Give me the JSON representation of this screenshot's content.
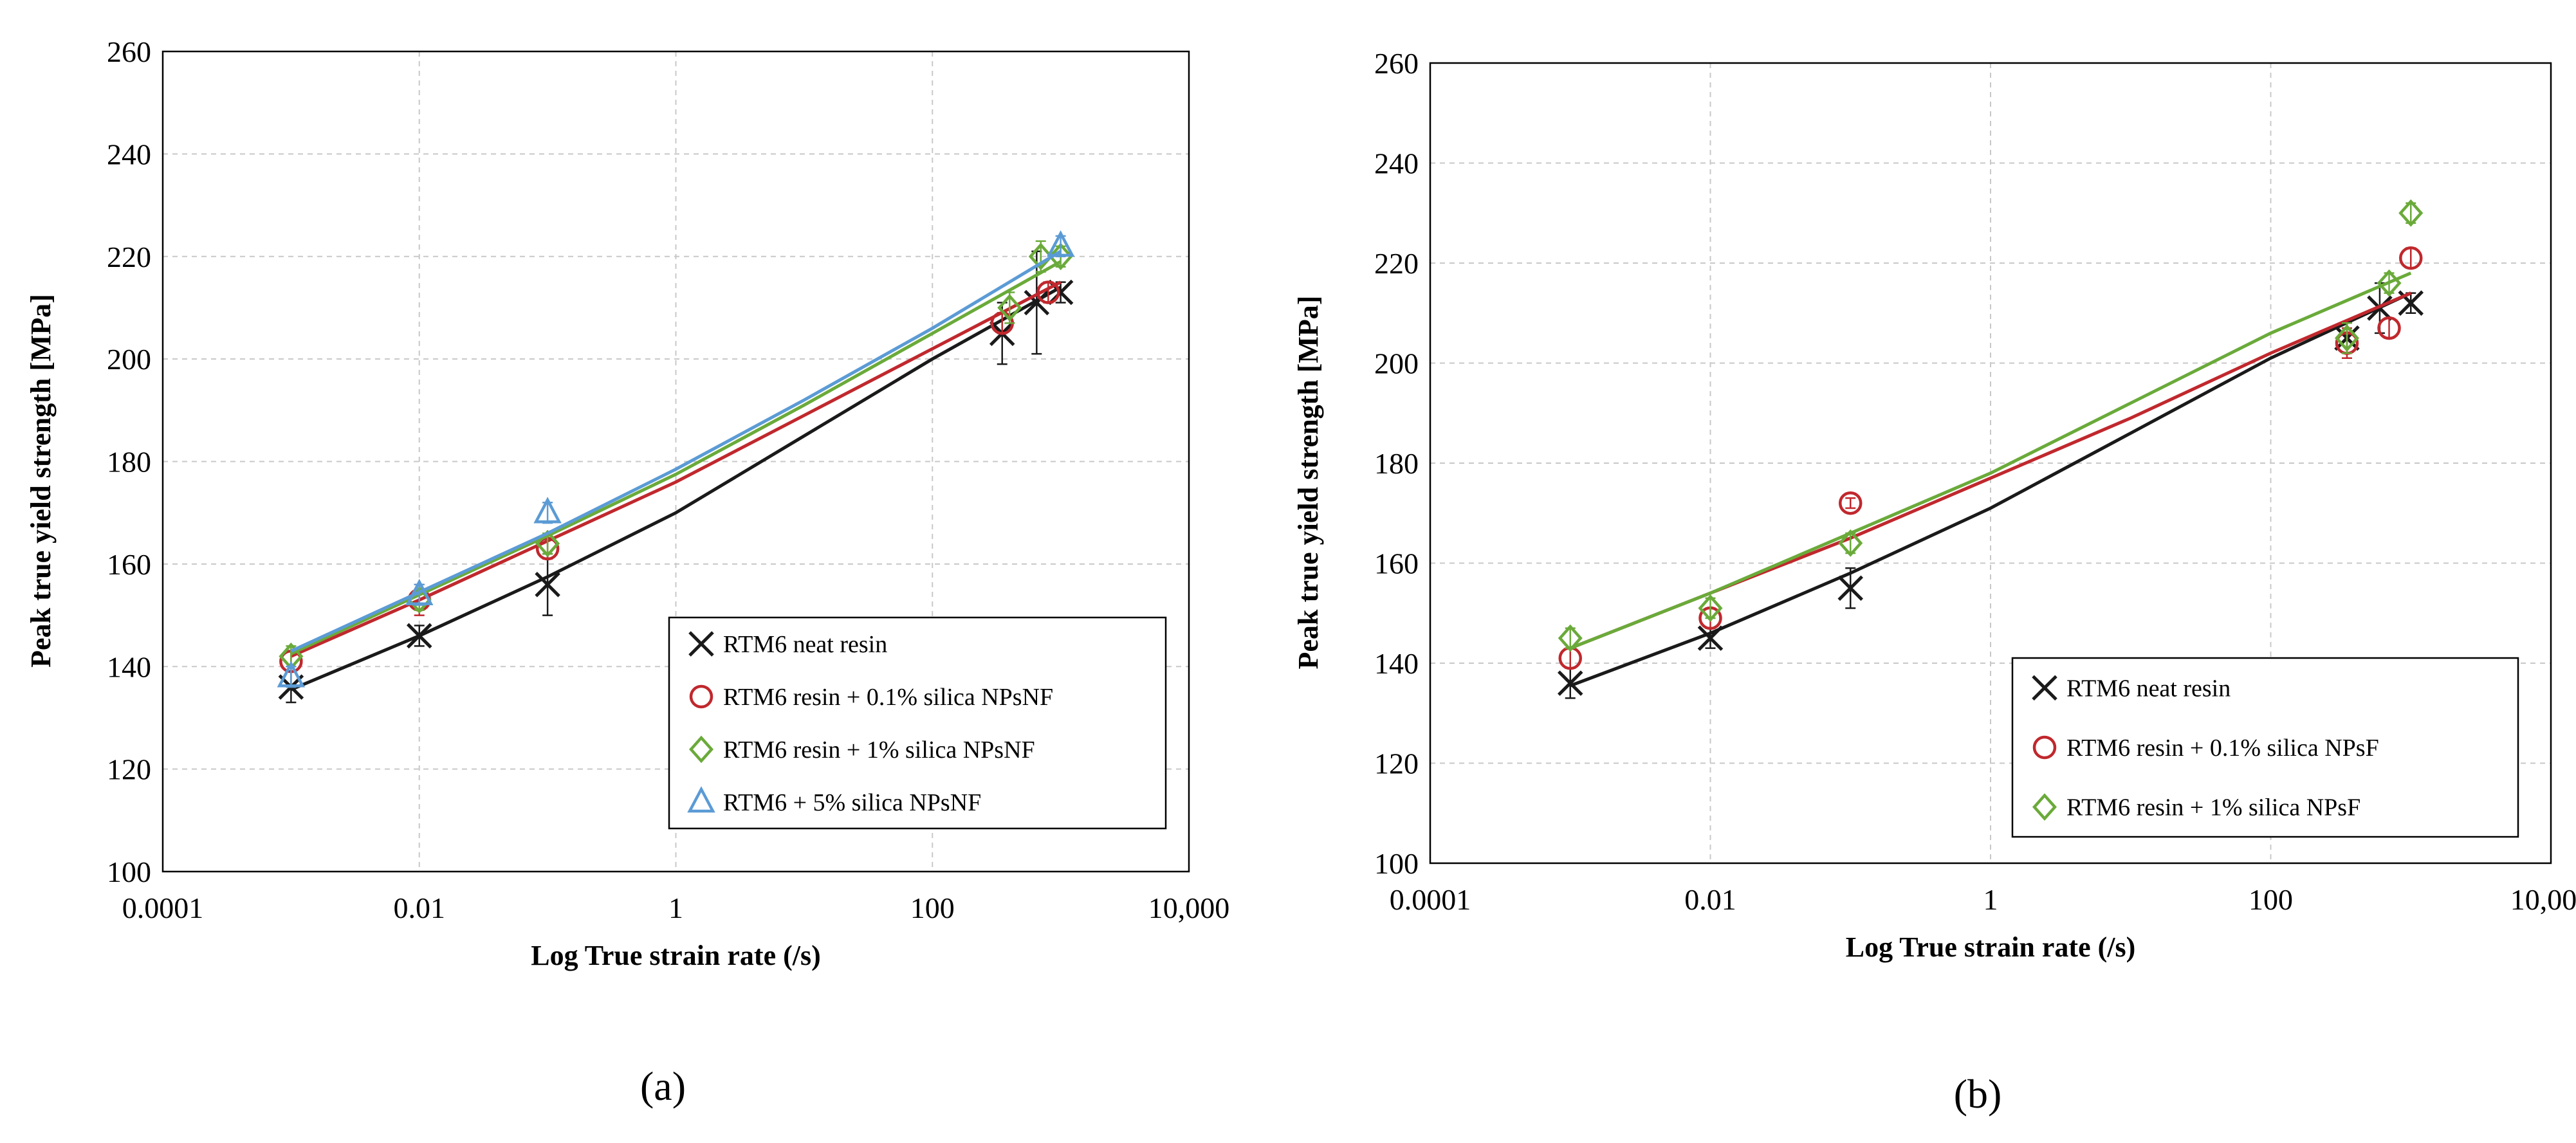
{
  "chart_data": [
    {
      "type": "scatter",
      "panel_label": "(a)",
      "title": "",
      "xlabel": "Log True strain rate (/s)",
      "ylabel": "Peak true yield strength [MPa]",
      "xscale": "log",
      "xlim": [
        0.0001,
        10000
      ],
      "ylim": [
        100,
        260
      ],
      "xticks": [
        0.0001,
        0.01,
        1,
        100,
        10000
      ],
      "xtick_labels": [
        "0.0001",
        "0.01",
        "1",
        "100",
        "10,000"
      ],
      "yticks": [
        100,
        120,
        140,
        160,
        180,
        200,
        220,
        240,
        260
      ],
      "ytick_labels": [
        "100",
        "120",
        "140",
        "160",
        "180",
        "200",
        "220",
        "240",
        "260"
      ],
      "grid": true,
      "legend_position": "bottom-right",
      "series": [
        {
          "name": "RTM6 neat resin",
          "marker": "x",
          "color": "#1a1a1a",
          "points": [
            {
              "x": 0.001,
              "y": 136,
              "err": 3
            },
            {
              "x": 0.01,
              "y": 146,
              "err": 2
            },
            {
              "x": 0.1,
              "y": 156,
              "err": 6
            },
            {
              "x": 350,
              "y": 205,
              "err": 6
            },
            {
              "x": 650,
              "y": 211,
              "err": 10
            },
            {
              "x": 1000,
              "y": 213,
              "err": 2
            }
          ],
          "fit": [
            [
              0.001,
              135.5
            ],
            [
              0.01,
              146
            ],
            [
              0.1,
              157.5
            ],
            [
              1,
              170
            ],
            [
              10,
              185
            ],
            [
              100,
              200
            ],
            [
              1000,
              214
            ]
          ]
        },
        {
          "name": "RTM6 resin + 0.1% silica NPsNF",
          "marker": "circle",
          "color": "#c0282d",
          "points": [
            {
              "x": 0.001,
              "y": 141,
              "err": 2
            },
            {
              "x": 0.01,
              "y": 153,
              "err": 3
            },
            {
              "x": 0.1,
              "y": 163,
              "err": 2
            },
            {
              "x": 350,
              "y": 207,
              "err": 2
            },
            {
              "x": 800,
              "y": 213,
              "err": 2
            }
          ],
          "fit": [
            [
              0.001,
              142
            ],
            [
              0.01,
              153
            ],
            [
              0.1,
              164.5
            ],
            [
              1,
              176
            ],
            [
              10,
              189
            ],
            [
              100,
              202
            ],
            [
              1000,
              215
            ]
          ]
        },
        {
          "name": "RTM6 resin + 1% silica NPsNF",
          "marker": "diamond",
          "color": "#6aaa3a",
          "points": [
            {
              "x": 0.001,
              "y": 142,
              "err": 2
            },
            {
              "x": 0.01,
              "y": 153,
              "err": 2
            },
            {
              "x": 0.1,
              "y": 164,
              "err": 2
            },
            {
              "x": 400,
              "y": 210,
              "err": 3
            },
            {
              "x": 700,
              "y": 220,
              "err": 3
            },
            {
              "x": 1000,
              "y": 220,
              "err": 2
            }
          ],
          "fit": [
            [
              0.001,
              142.5
            ],
            [
              0.01,
              154
            ],
            [
              0.1,
              165.5
            ],
            [
              1,
              177.5
            ],
            [
              10,
              191
            ],
            [
              100,
              205
            ],
            [
              1000,
              219
            ]
          ]
        },
        {
          "name": "RTM6 + 5% silica NPsNF",
          "marker": "triangle",
          "color": "#5b9bd5",
          "points": [
            {
              "x": 0.001,
              "y": 138,
              "err": 2
            },
            {
              "x": 0.01,
              "y": 154,
              "err": 2
            },
            {
              "x": 0.1,
              "y": 170,
              "err": 2
            },
            {
              "x": 1000,
              "y": 222,
              "err": 2
            }
          ],
          "fit": [
            [
              0.001,
              143
            ],
            [
              0.01,
              154.5
            ],
            [
              0.1,
              166
            ],
            [
              1,
              178.5
            ],
            [
              10,
              192
            ],
            [
              100,
              206
            ],
            [
              1000,
              221
            ]
          ]
        }
      ]
    },
    {
      "type": "scatter",
      "panel_label": "(b)",
      "title": "",
      "xlabel": "Log True strain rate (/s)",
      "ylabel": "Peak true yield strength [MPa]",
      "xscale": "log",
      "xlim": [
        0.0001,
        10000
      ],
      "ylim": [
        100,
        260
      ],
      "xticks": [
        0.0001,
        0.01,
        1,
        100,
        10000
      ],
      "xtick_labels": [
        "0.0001",
        "0.01",
        "1",
        "100",
        "10,000"
      ],
      "yticks": [
        100,
        120,
        140,
        160,
        180,
        200,
        220,
        240,
        260
      ],
      "ytick_labels": [
        "100",
        "120",
        "140",
        "160",
        "180",
        "200",
        "220",
        "240",
        "260"
      ],
      "grid": true,
      "legend_position": "bottom-right",
      "series": [
        {
          "name": "RTM6 neat resin",
          "marker": "x",
          "color": "#1a1a1a",
          "points": [
            {
              "x": 0.001,
              "y": 136,
              "err": 3
            },
            {
              "x": 0.01,
              "y": 145,
              "err": 2
            },
            {
              "x": 0.1,
              "y": 155,
              "err": 4
            },
            {
              "x": 350,
              "y": 205,
              "err": 3
            },
            {
              "x": 600,
              "y": 211,
              "err": 5
            },
            {
              "x": 1000,
              "y": 212,
              "err": 2
            }
          ],
          "fit": [
            [
              0.001,
              135.5
            ],
            [
              0.01,
              146
            ],
            [
              0.1,
              158
            ],
            [
              1,
              171
            ],
            [
              10,
              186
            ],
            [
              100,
              201
            ],
            [
              1000,
              214
            ]
          ]
        },
        {
          "name": "RTM6 resin + 0.1% silica NPsF",
          "marker": "circle",
          "color": "#c0282d",
          "points": [
            {
              "x": 0.001,
              "y": 141,
              "err": 2
            },
            {
              "x": 0.01,
              "y": 149,
              "err": 2
            },
            {
              "x": 0.1,
              "y": 172,
              "err": 1
            },
            {
              "x": 350,
              "y": 204,
              "err": 3
            },
            {
              "x": 700,
              "y": 207,
              "err": 2
            },
            {
              "x": 1000,
              "y": 221,
              "err": 2
            }
          ],
          "fit": [
            [
              0.001,
              143
            ],
            [
              0.01,
              154
            ],
            [
              0.1,
              165
            ],
            [
              1,
              177
            ],
            [
              10,
              189
            ],
            [
              100,
              202
            ],
            [
              1000,
              214
            ]
          ]
        },
        {
          "name": "RTM6 resin + 1% silica NPsF",
          "marker": "diamond",
          "color": "#6aaa3a",
          "points": [
            {
              "x": 0.001,
              "y": 145,
              "err": 2
            },
            {
              "x": 0.01,
              "y": 151,
              "err": 2
            },
            {
              "x": 0.1,
              "y": 164,
              "err": 2
            },
            {
              "x": 350,
              "y": 205,
              "err": 3
            },
            {
              "x": 700,
              "y": 216,
              "err": 2
            },
            {
              "x": 1000,
              "y": 230,
              "err": 2
            }
          ],
          "fit": [
            [
              0.001,
              143
            ],
            [
              0.01,
              154
            ],
            [
              0.1,
              166
            ],
            [
              1,
              178
            ],
            [
              10,
              192
            ],
            [
              100,
              206
            ],
            [
              1000,
              218
            ]
          ]
        }
      ]
    }
  ]
}
